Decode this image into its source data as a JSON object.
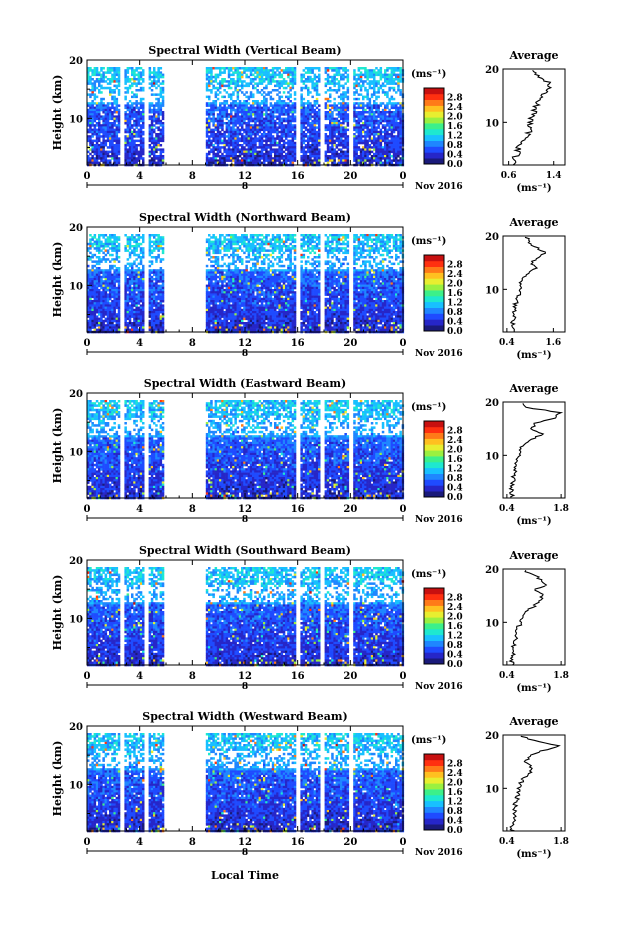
{
  "figure": {
    "xlabel": "Local Time",
    "date_label": "Nov 2016",
    "day_label": "8",
    "ylabel": "Height (km)",
    "unit_label": "(ms⁻¹)",
    "avg_title": "Average",
    "avg_xlabel": "(ms⁻¹)"
  },
  "chart_data": [
    {
      "type": "heatmap",
      "title": "Spectral Width (Vertical Beam)",
      "xlabel": "Local Time",
      "ylabel": "Height (km)",
      "xlim": [
        0,
        24
      ],
      "ylim": [
        2,
        20
      ],
      "x_ticks": [
        "0",
        "4",
        "8",
        "12",
        "16",
        "20",
        "0"
      ],
      "y_ticks": [
        "10",
        "20"
      ],
      "colorbar": {
        "label": "(ms⁻¹)",
        "range": [
          0,
          3.2
        ],
        "ticks": [
          "0.0",
          "0.4",
          "0.8",
          "1.2",
          "1.6",
          "2.0",
          "2.4",
          "2.8"
        ]
      },
      "data_gaps_hours": [
        [
          2.5,
          2.8
        ],
        [
          4.2,
          4.6
        ],
        [
          5.8,
          8.9
        ],
        [
          15.8,
          16.1
        ],
        [
          17.7,
          18.0
        ],
        [
          19.8,
          20.2
        ]
      ],
      "average_profile": {
        "title": "Average",
        "xlabel": "(ms⁻¹)",
        "xlim": [
          0.5,
          1.6
        ],
        "x_ticks": [
          "0.6",
          "1.4"
        ],
        "y_ticks": [
          "10",
          "20"
        ],
        "height_km": [
          2,
          3,
          4,
          5,
          6,
          7,
          8,
          9,
          10,
          11,
          12,
          13,
          14,
          15,
          16,
          17,
          18,
          19,
          20
        ],
        "width": [
          0.72,
          0.7,
          0.74,
          0.78,
          0.82,
          0.88,
          0.95,
          0.98,
          1.0,
          1.02,
          1.05,
          1.1,
          1.12,
          1.15,
          1.3,
          1.35,
          1.25,
          1.1,
          1.05
        ]
      }
    },
    {
      "type": "heatmap",
      "title": "Spectral Width (Northward Beam)",
      "xlabel": "Local Time",
      "ylabel": "Height (km)",
      "xlim": [
        0,
        24
      ],
      "ylim": [
        2,
        20
      ],
      "x_ticks": [
        "0",
        "4",
        "8",
        "12",
        "16",
        "20",
        "0"
      ],
      "y_ticks": [
        "10",
        "20"
      ],
      "colorbar": {
        "label": "(ms⁻¹)",
        "range": [
          0,
          3.2
        ],
        "ticks": [
          "0.0",
          "0.4",
          "0.8",
          "1.2",
          "1.6",
          "2.0",
          "2.4",
          "2.8"
        ]
      },
      "data_gaps_hours": [
        [
          2.5,
          2.8
        ],
        [
          4.2,
          4.6
        ],
        [
          5.8,
          8.9
        ],
        [
          15.8,
          16.1
        ],
        [
          17.7,
          18.0
        ],
        [
          19.8,
          20.2
        ]
      ],
      "average_profile": {
        "title": "Average",
        "xlabel": "(ms⁻¹)",
        "xlim": [
          0.3,
          1.9
        ],
        "x_ticks": [
          "0.4",
          "1.6"
        ],
        "y_ticks": [
          "10",
          "20"
        ],
        "height_km": [
          2,
          3,
          4,
          5,
          6,
          7,
          8,
          9,
          10,
          11,
          12,
          13,
          14,
          15,
          16,
          17,
          18,
          19,
          20
        ],
        "width": [
          0.55,
          0.52,
          0.56,
          0.6,
          0.58,
          0.62,
          0.65,
          0.7,
          0.72,
          0.75,
          0.8,
          1.0,
          1.15,
          1.05,
          1.2,
          1.4,
          1.1,
          0.95,
          0.9
        ]
      }
    },
    {
      "type": "heatmap",
      "title": "Spectral Width (Eastward Beam)",
      "xlabel": "Local Time",
      "ylabel": "Height (km)",
      "xlim": [
        0,
        24
      ],
      "ylim": [
        2,
        20
      ],
      "x_ticks": [
        "0",
        "4",
        "8",
        "12",
        "16",
        "20",
        "0"
      ],
      "y_ticks": [
        "10",
        "20"
      ],
      "colorbar": {
        "label": "(ms⁻¹)",
        "range": [
          0,
          3.2
        ],
        "ticks": [
          "0.0",
          "0.4",
          "0.8",
          "1.2",
          "1.6",
          "2.0",
          "2.4",
          "2.8"
        ]
      },
      "data_gaps_hours": [
        [
          2.5,
          2.8
        ],
        [
          4.2,
          4.6
        ],
        [
          5.8,
          8.9
        ],
        [
          15.8,
          16.1
        ],
        [
          17.7,
          18.0
        ],
        [
          19.8,
          20.2
        ]
      ],
      "average_profile": {
        "title": "Average",
        "xlabel": "(ms⁻¹)",
        "xlim": [
          0.3,
          1.9
        ],
        "x_ticks": [
          "0.4",
          "1.8"
        ],
        "y_ticks": [
          "10",
          "20"
        ],
        "height_km": [
          2,
          3,
          4,
          5,
          6,
          7,
          8,
          9,
          10,
          11,
          12,
          13,
          14,
          15,
          16,
          17,
          18,
          19,
          20
        ],
        "width": [
          0.55,
          0.5,
          0.54,
          0.56,
          0.58,
          0.6,
          0.62,
          0.66,
          0.7,
          0.75,
          0.85,
          1.05,
          1.3,
          1.0,
          1.15,
          1.6,
          1.8,
          0.9,
          0.75
        ]
      }
    },
    {
      "type": "heatmap",
      "title": "Spectral Width (Southward Beam)",
      "xlabel": "Local Time",
      "ylabel": "Height (km)",
      "xlim": [
        0,
        24
      ],
      "ylim": [
        2,
        20
      ],
      "x_ticks": [
        "0",
        "4",
        "8",
        "12",
        "16",
        "20",
        "0"
      ],
      "y_ticks": [
        "10",
        "20"
      ],
      "colorbar": {
        "label": "(ms⁻¹)",
        "range": [
          0,
          3.2
        ],
        "ticks": [
          "0.0",
          "0.4",
          "0.8",
          "1.2",
          "1.6",
          "2.0",
          "2.4",
          "2.8"
        ]
      },
      "data_gaps_hours": [
        [
          2.5,
          2.8
        ],
        [
          4.2,
          4.6
        ],
        [
          5.8,
          8.9
        ],
        [
          15.8,
          16.1
        ],
        [
          17.7,
          18.0
        ],
        [
          19.8,
          20.2
        ]
      ],
      "average_profile": {
        "title": "Average",
        "xlabel": "(ms⁻¹)",
        "xlim": [
          0.3,
          1.9
        ],
        "x_ticks": [
          "0.4",
          "1.8"
        ],
        "y_ticks": [
          "10",
          "20"
        ],
        "height_km": [
          2,
          3,
          4,
          5,
          6,
          7,
          8,
          9,
          10,
          11,
          12,
          13,
          14,
          15,
          16,
          17,
          18,
          19,
          20
        ],
        "width": [
          0.55,
          0.5,
          0.58,
          0.52,
          0.6,
          0.62,
          0.65,
          0.7,
          0.74,
          0.8,
          0.9,
          1.1,
          1.2,
          1.35,
          1.1,
          1.45,
          1.3,
          1.05,
          0.8
        ]
      }
    },
    {
      "type": "heatmap",
      "title": "Spectral Width (Westward Beam)",
      "xlabel": "Local Time",
      "ylabel": "Height (km)",
      "xlim": [
        0,
        24
      ],
      "ylim": [
        2,
        20
      ],
      "x_ticks": [
        "0",
        "4",
        "8",
        "12",
        "16",
        "20",
        "0"
      ],
      "y_ticks": [
        "10",
        "20"
      ],
      "colorbar": {
        "label": "(ms⁻¹)",
        "range": [
          0,
          3.2
        ],
        "ticks": [
          "0.0",
          "0.4",
          "0.8",
          "1.2",
          "1.6",
          "2.0",
          "2.4",
          "2.8"
        ]
      },
      "data_gaps_hours": [
        [
          2.5,
          2.8
        ],
        [
          4.2,
          4.6
        ],
        [
          5.8,
          8.9
        ],
        [
          15.8,
          16.1
        ],
        [
          17.7,
          18.0
        ],
        [
          19.8,
          20.2
        ]
      ],
      "average_profile": {
        "title": "Average",
        "xlabel": "(ms⁻¹)",
        "xlim": [
          0.3,
          1.9
        ],
        "x_ticks": [
          "0.4",
          "1.8"
        ],
        "y_ticks": [
          "10",
          "20"
        ],
        "height_km": [
          2,
          3,
          4,
          5,
          6,
          7,
          8,
          9,
          10,
          11,
          12,
          13,
          14,
          15,
          16,
          17,
          18,
          19,
          20
        ],
        "width": [
          0.55,
          0.52,
          0.56,
          0.58,
          0.6,
          0.62,
          0.66,
          0.7,
          0.72,
          0.76,
          0.85,
          1.05,
          1.0,
          0.9,
          0.95,
          1.3,
          1.75,
          1.1,
          0.7
        ]
      }
    }
  ]
}
